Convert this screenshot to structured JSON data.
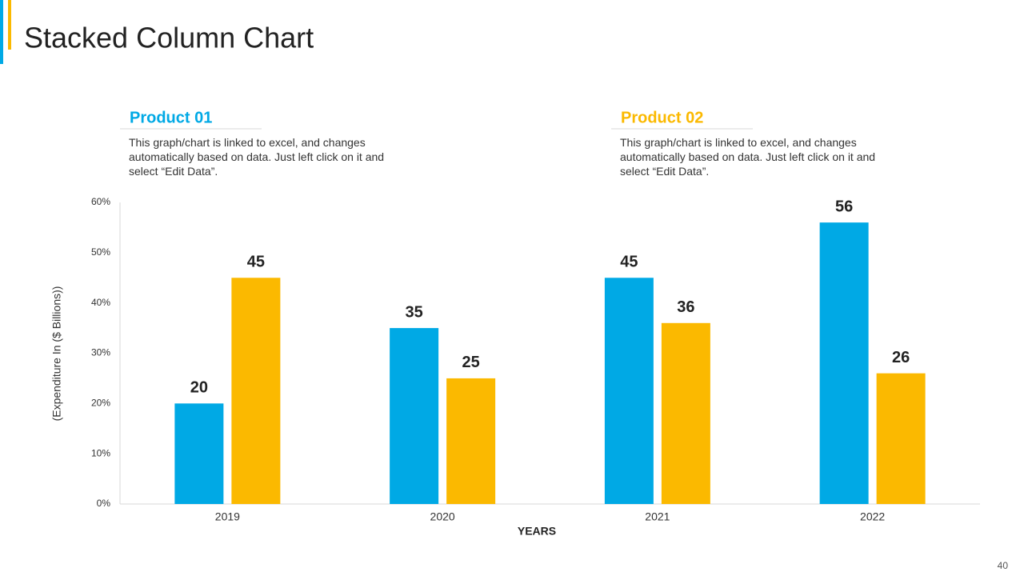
{
  "title": "Stacked Column Chart",
  "page_number": "40",
  "chart_data": {
    "type": "bar",
    "categories": [
      "2019",
      "2020",
      "2021",
      "2022"
    ],
    "series": [
      {
        "name": "Product 01",
        "color": "#00a9e5",
        "values": [
          20,
          35,
          45,
          56
        ]
      },
      {
        "name": "Product 02",
        "color": "#fbb900",
        "values": [
          45,
          25,
          36,
          26
        ]
      }
    ],
    "descriptions": [
      "This graph/chart is linked to excel, and changes automatically based on data. Just left click on it and select “Edit Data”.",
      "This graph/chart is linked to excel, and changes automatically based on data. Just left click on it and select “Edit Data”."
    ],
    "ylabel": "(Expenditure In ($ Billions))",
    "xlabel": "YEARS",
    "ylim": [
      0,
      60
    ],
    "yticks": [
      {
        "value": 0,
        "label": "0%"
      },
      {
        "value": 10,
        "label": "10%"
      },
      {
        "value": 20,
        "label": "20%"
      },
      {
        "value": 30,
        "label": "30%"
      },
      {
        "value": 40,
        "label": "40%"
      },
      {
        "value": 50,
        "label": "50%"
      },
      {
        "value": 60,
        "label": "60%"
      }
    ],
    "grid": false
  }
}
